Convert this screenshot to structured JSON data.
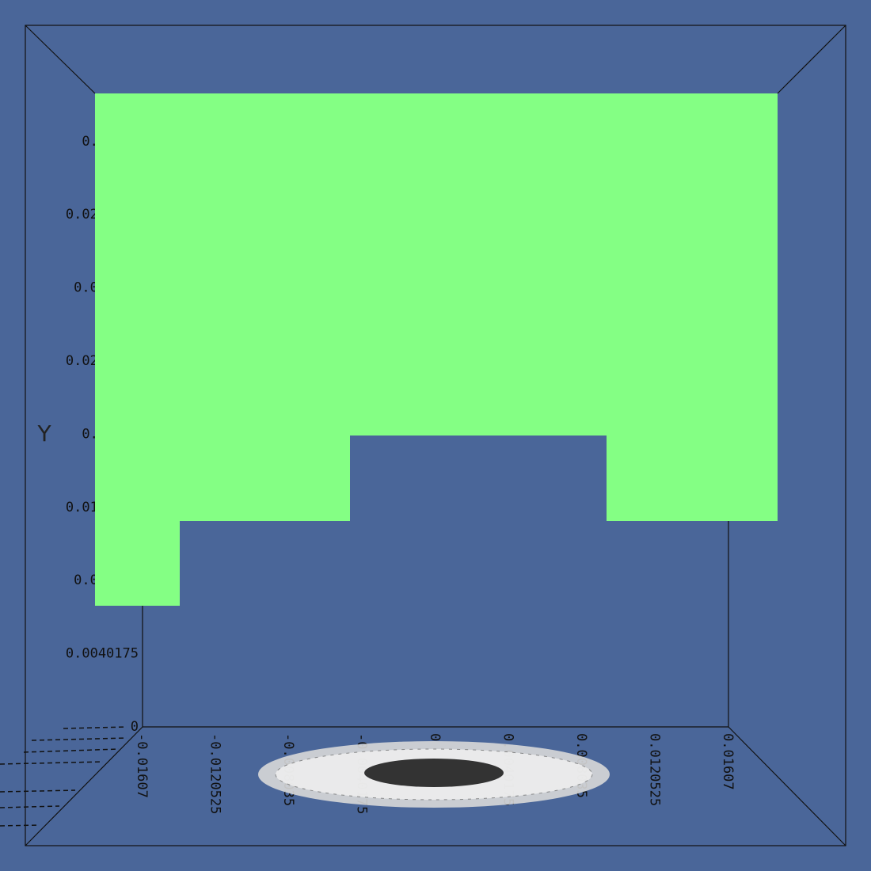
{
  "axis_title": "Y",
  "y_labels": [
    "0",
    "0.0040175",
    "0.008035",
    "0.0120525",
    "0.01607",
    "0.0200875",
    "0.024105",
    "0.0281225",
    "0.03214"
  ],
  "x_labels": [
    "-0.01607",
    "-0.0120525",
    "-0.008035",
    "-0.0040175",
    "0",
    "0.0040175",
    "0.008035",
    "0.0120525",
    "0.01607"
  ]
}
